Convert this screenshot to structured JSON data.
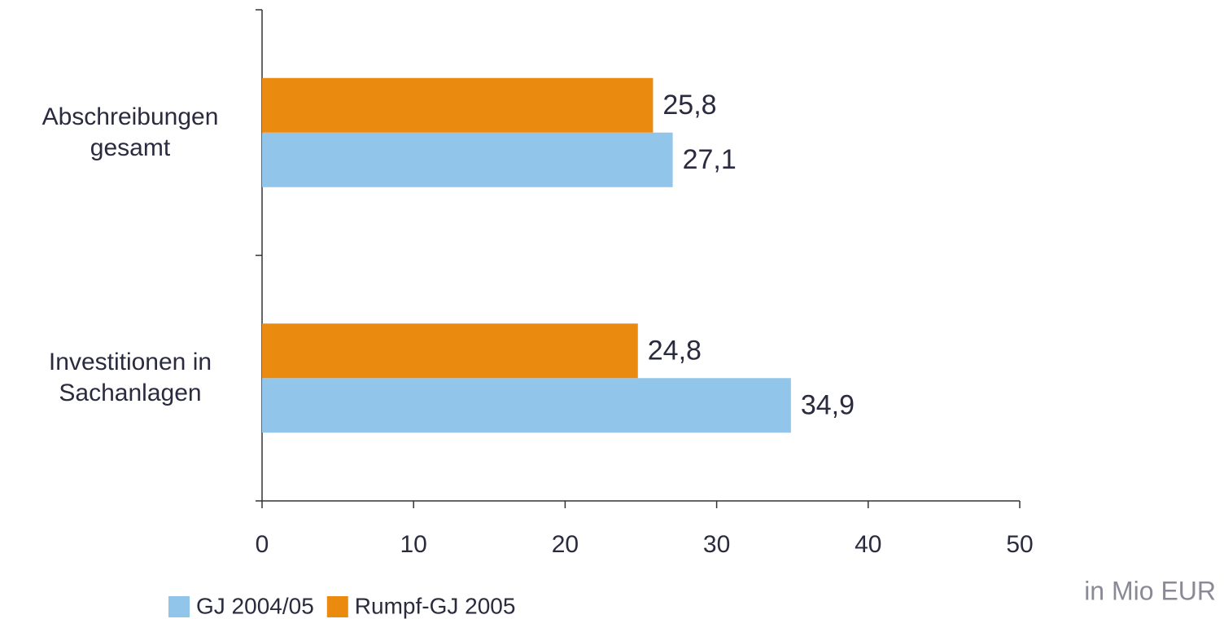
{
  "chart_data": {
    "type": "hbar",
    "categories": [
      "Abschreibungen gesamt",
      "Investitionen in Sachanlagen"
    ],
    "series": [
      {
        "name": "GJ 2004/05",
        "color": "#92c5ea",
        "values": [
          27.1,
          34.9
        ],
        "value_labels": [
          "27,1",
          "34,9"
        ]
      },
      {
        "name": "Rumpf-GJ 2005",
        "color": "#ea8a0e",
        "values": [
          25.8,
          24.8
        ],
        "value_labels": [
          "25,8",
          "24,8"
        ]
      }
    ],
    "xlim": [
      0,
      50
    ],
    "xticks": [
      0,
      10,
      20,
      30,
      40,
      50
    ],
    "annotation": "in Mio EUR",
    "legend": "bottom-left"
  }
}
